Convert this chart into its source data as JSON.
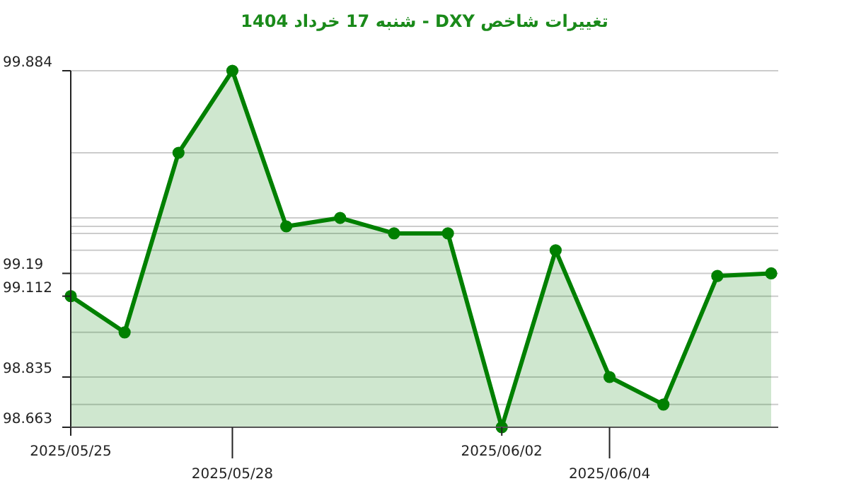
{
  "chart_data": {
    "type": "area",
    "title": "تغییرات شاخص DXY - شنبه  17 خرداد 1404",
    "categories": [
      "2025/05/25",
      null,
      null,
      "2025/05/28",
      null,
      null,
      null,
      null,
      "2025/06/02",
      null,
      "2025/06/04",
      null,
      null,
      null
    ],
    "series": [
      {
        "color": "#008000",
        "values": [
          99.112,
          98.988,
          99.603,
          99.884,
          99.351,
          99.38,
          99.327,
          99.327,
          98.663,
          99.269,
          98.835,
          98.741,
          99.181,
          99.19
        ]
      }
    ],
    "ylim": [
      98.663,
      99.884
    ],
    "yticks": [
      98.663,
      98.835,
      99.112,
      99.19,
      99.884,
      {
        "value": 98.741,
        "label": null
      },
      {
        "value": 98.988,
        "label": null
      },
      {
        "value": 99.269,
        "label": null
      },
      {
        "value": 99.327,
        "label": null
      },
      {
        "value": 99.351,
        "label": null
      },
      {
        "value": 99.38,
        "label": null
      },
      {
        "value": 99.603,
        "label": null
      }
    ],
    "grid": "y",
    "marker": "circle"
  }
}
